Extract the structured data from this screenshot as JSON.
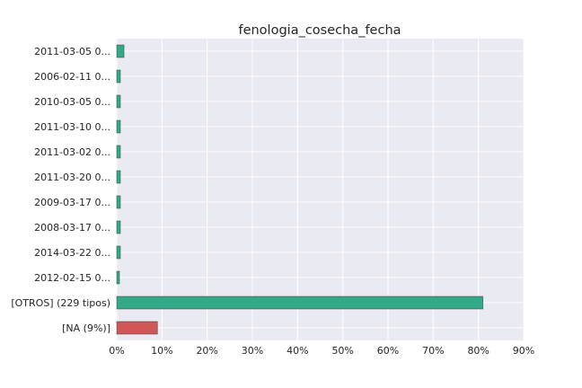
{
  "chart_data": {
    "type": "bar",
    "orientation": "horizontal",
    "title": "fenologia_cosecha_fecha",
    "xlabel": "",
    "ylabel": "",
    "xlim": [
      0,
      90
    ],
    "x_ticks": [
      "0%",
      "10%",
      "20%",
      "30%",
      "40%",
      "50%",
      "60%",
      "70%",
      "80%",
      "90%"
    ],
    "grid": true,
    "categories": [
      "2011-03-05 0...",
      "2006-02-11 0...",
      "2010-03-05 0...",
      "2011-03-10 0...",
      "2011-03-02 0...",
      "2011-03-20 0...",
      "2009-03-17 0...",
      "2008-03-17 0...",
      "2014-03-22 0...",
      "2012-02-15 0...",
      "[OTROS] (229 tipos)",
      "[NA (9%)]"
    ],
    "values": [
      1.6,
      0.8,
      0.8,
      0.8,
      0.8,
      0.8,
      0.8,
      0.8,
      0.8,
      0.6,
      81,
      9
    ],
    "colors": [
      "#33a987",
      "#33a987",
      "#33a987",
      "#33a987",
      "#33a987",
      "#33a987",
      "#33a987",
      "#33a987",
      "#33a987",
      "#33a987",
      "#33a987",
      "#d05755"
    ],
    "background_color": "#eaeaf2",
    "grid_color": "#ffffff"
  }
}
